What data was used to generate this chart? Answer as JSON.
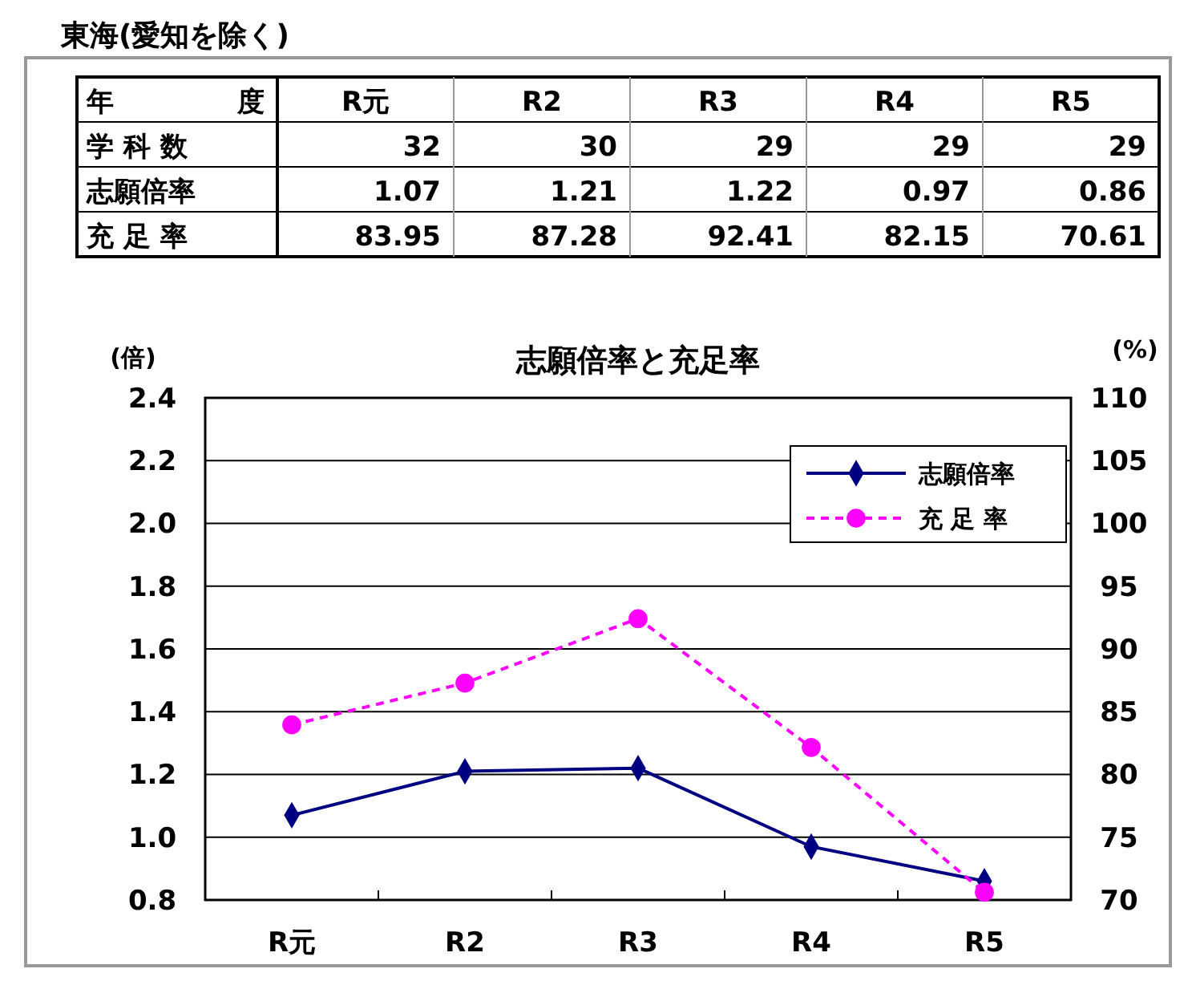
{
  "chart_data": [
    {
      "type": "other",
      "xlabel": "年　　度",
      "categories": [
        "R元",
        "R2",
        "R3",
        "R4",
        "R5"
      ],
      "series": [
        {
          "name": "学 科 数",
          "values": [
            32,
            30,
            29,
            29,
            29
          ],
          "value_labels": [
            "32",
            "30",
            "29",
            "29",
            "29"
          ]
        },
        {
          "name": "志願倍率",
          "values": [
            1.07,
            1.21,
            1.22,
            0.97,
            0.86
          ],
          "value_labels": [
            "1.07",
            "1.21",
            "1.22",
            "0.97",
            "0.86"
          ]
        },
        {
          "name": "充 足 率",
          "values": [
            83.95,
            87.28,
            92.41,
            82.15,
            70.61
          ],
          "value_labels": [
            "83.95",
            "87.28",
            "92.41",
            "82.15",
            "70.61"
          ]
        }
      ],
      "annotations": [
        "東海(愛知を除く)"
      ]
    },
    {
      "type": "line",
      "title": "志願倍率と充足率",
      "ylabel": "(倍)",
      "y2label": "(%)",
      "categories": [
        "R元",
        "R2",
        "R3",
        "R4",
        "R5"
      ],
      "series": [
        {
          "name": "志願倍率",
          "color": "#000080",
          "values": [
            1.07,
            1.21,
            1.22,
            0.97,
            0.86
          ],
          "marker": "diamond",
          "line_style": "solid"
        },
        {
          "name": "充 足 率",
          "color": "#ff00ff",
          "values": [
            83.95,
            87.28,
            92.41,
            82.15,
            70.61
          ],
          "axis": "y2",
          "marker": "circle",
          "line_style": "dashed"
        }
      ],
      "ylim": [
        0.8,
        2.4
      ],
      "yticks": [
        {
          "value": 0.8,
          "label": "0.8"
        },
        {
          "value": 1.0,
          "label": "1.0"
        },
        1.2,
        1.4,
        1.6,
        1.8,
        {
          "value": 2.0,
          "label": "2.0"
        },
        2.2,
        2.4
      ],
      "y2lim": [
        70,
        110
      ],
      "y2ticks": [
        70,
        75,
        80,
        85,
        90,
        95,
        100,
        105,
        110
      ],
      "grid": "y",
      "legend": "top right"
    }
  ]
}
